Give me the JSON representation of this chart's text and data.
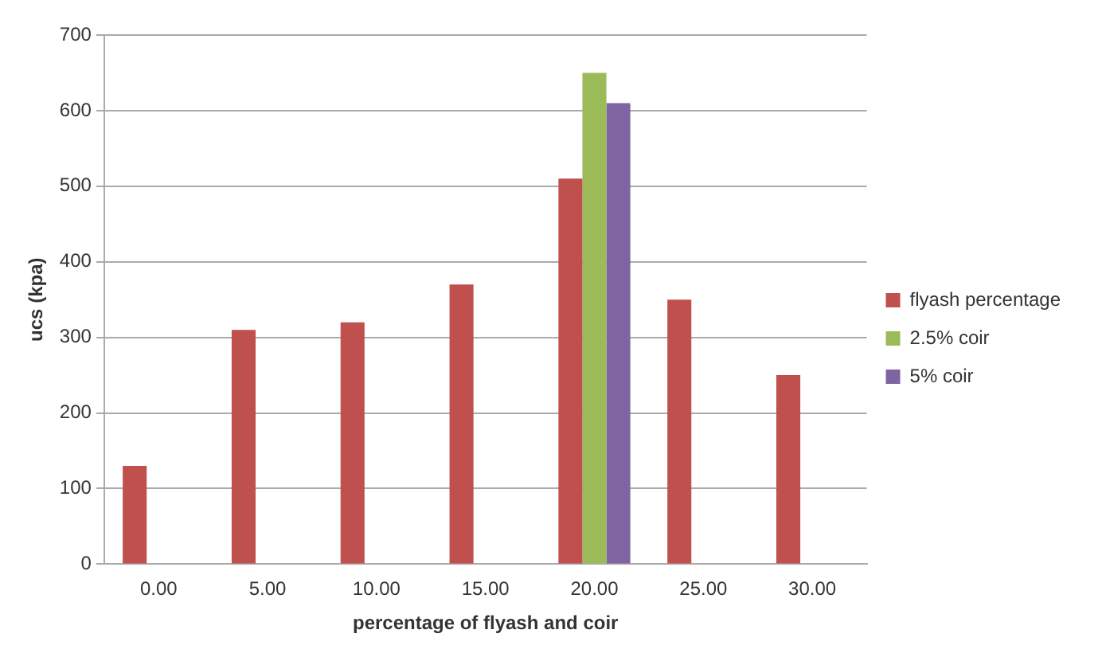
{
  "chart_data": {
    "type": "bar",
    "xlabel": "percentage of flyash and coir",
    "ylabel": "ucs (kpa)",
    "categories": [
      "0.00",
      "5.00",
      "10.00",
      "15.00",
      "20.00",
      "25.00",
      "30.00"
    ],
    "series": [
      {
        "name": "flyash percentage",
        "color": "#c0504d",
        "values": [
          130,
          310,
          320,
          370,
          510,
          350,
          250
        ]
      },
      {
        "name": "2.5% coir",
        "color": "#9bbb59",
        "values": [
          null,
          null,
          null,
          null,
          650,
          null,
          null
        ]
      },
      {
        "name": "5% coir",
        "color": "#8064a2",
        "values": [
          null,
          null,
          null,
          null,
          610,
          null,
          null
        ]
      }
    ],
    "ylim": [
      0,
      700
    ],
    "yticks": [
      0,
      100,
      200,
      300,
      400,
      500,
      600,
      700
    ],
    "grid": "y",
    "legend": "right"
  }
}
